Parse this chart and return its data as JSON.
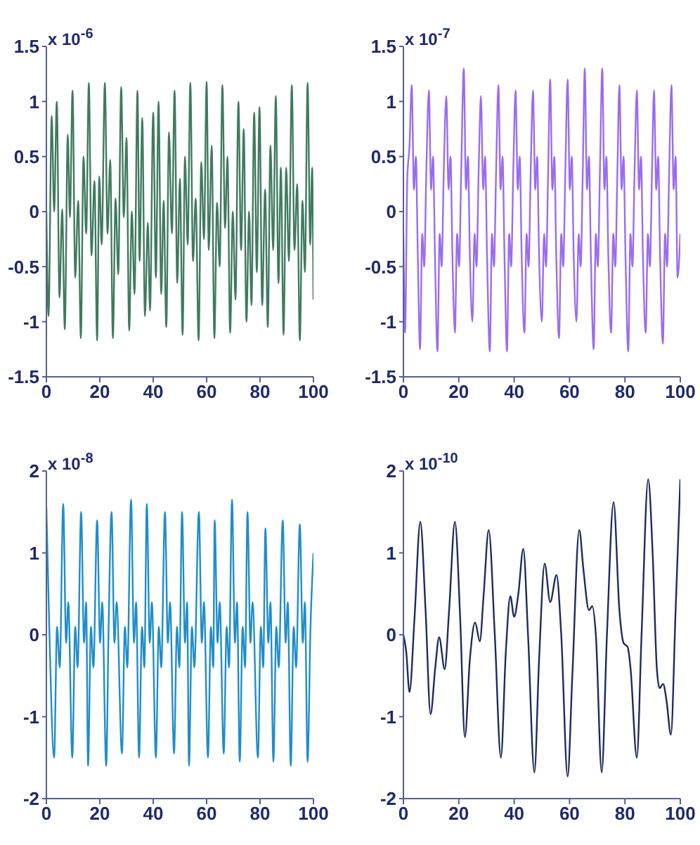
{
  "chart_data": [
    {
      "type": "line",
      "xlim": [
        0,
        100
      ],
      "xticks": [
        0,
        20,
        40,
        60,
        80,
        100
      ],
      "ylim": [
        -1.5,
        1.5
      ],
      "yticks": [
        -1.5,
        -1,
        -0.5,
        0,
        0.5,
        1,
        1.5
      ],
      "annotations": [
        "x 10$^{-6}$"
      ],
      "x": [
        0,
        0.8,
        2,
        2.9,
        3.9,
        4.9,
        5.9,
        6.9,
        8,
        8.8,
        9.8,
        10.8,
        11.9,
        12.9,
        13.9,
        14.9,
        15.9,
        16.9,
        18,
        19,
        19.8,
        20.7,
        21.9,
        22.9,
        23.9,
        24.9,
        25.9,
        26.9,
        28,
        29,
        30,
        31,
        32,
        33,
        34.1,
        34.9,
        35.9,
        36.9,
        38,
        38.8,
        40,
        41,
        42,
        43,
        43.9,
        44.9,
        45.9,
        47,
        48,
        49,
        50,
        51,
        51.9,
        52.9,
        53.9,
        54.9,
        55.9,
        57,
        58,
        59,
        60,
        60.8,
        61.9,
        62.9,
        63.9,
        64.9,
        65.9,
        66.9,
        67.8,
        68.8,
        69.8,
        70.8,
        71.9,
        72.9,
        73.9,
        74.9,
        75.9,
        76.8,
        77.8,
        78.8,
        79.8,
        80.8,
        81.9,
        82.9,
        83.9,
        84.9,
        85.9,
        86.9,
        87.8,
        88.8,
        89.8,
        90.8,
        91.9,
        92.9,
        93.9,
        94.9,
        95.9,
        96.8,
        97.8,
        98.8,
        99.5,
        100
      ],
      "series": [
        {
          "color": "#3f7a5f",
          "values": [
            0,
            -0.95,
            0.87,
            0,
            1.0,
            -0.78,
            0.02,
            -1.07,
            0.7,
            -0.05,
            1.1,
            -0.6,
            0.1,
            -1.15,
            0.5,
            -0.2,
            1.17,
            -0.4,
            0.28,
            -1.17,
            0.32,
            -0.3,
            1.17,
            -0.2,
            0.47,
            -1.15,
            0.12,
            -0.57,
            1.13,
            -0.05,
            0.67,
            -1.08,
            0,
            -0.75,
            1.1,
            -0.45,
            0.85,
            -0.95,
            -0.1,
            -0.9,
            0.9,
            -0.6,
            1.0,
            -0.75,
            0.1,
            -1.05,
            0.72,
            -0.2,
            1.1,
            -0.65,
            0.3,
            -1.12,
            0.5,
            -0.3,
            1.17,
            -0.45,
            0.12,
            -1.17,
            0.45,
            -0.25,
            1.18,
            -0.35,
            0.6,
            -1.15,
            0.08,
            -0.5,
            1.15,
            -0.15,
            0.5,
            -1.1,
            0,
            -0.8,
            1.0,
            -0.35,
            0.75,
            -1.0,
            0,
            -0.85,
            0.9,
            -0.55,
            0.95,
            -0.85,
            0.2,
            -1.05,
            0.6,
            -0.35,
            1.05,
            -0.65,
            0.4,
            -1.12,
            0.4,
            -0.45,
            1.15,
            -0.35,
            0.25,
            -1.17,
            0.1,
            -0.55,
            1.17,
            -0.3,
            0.4,
            -0.8
          ]
        }
      ]
    },
    {
      "type": "line",
      "xlim": [
        0,
        100
      ],
      "xticks": [
        0,
        20,
        40,
        60,
        80,
        100
      ],
      "ylim": [
        -1.5,
        1.5
      ],
      "yticks": [
        -1.5,
        -1,
        -0.5,
        0,
        0.5,
        1,
        1.5
      ],
      "annotations": [
        "x 10$^{-7}$"
      ],
      "x": [
        0,
        0.6,
        1.4,
        2.2,
        3,
        3.8,
        4.5,
        5.2,
        6,
        6.8,
        7.5,
        8.3,
        9.2,
        10,
        10.7,
        11.4,
        12.3,
        13.1,
        13.8,
        14.6,
        15.5,
        16.3,
        17,
        17.7,
        18.6,
        19.4,
        20.1,
        20.9,
        21.8,
        22.6,
        23.3,
        24,
        24.9,
        25.7,
        26.4,
        27.2,
        28,
        28.8,
        29.5,
        30.2,
        31.2,
        32,
        32.7,
        33.5,
        34.3,
        35.1,
        35.8,
        36.5,
        37.4,
        38.2,
        38.9,
        39.7,
        40.5,
        41.3,
        42,
        42.7,
        43.7,
        44.5,
        45.2,
        46,
        46.8,
        47.6,
        48.3,
        49,
        50,
        50.8,
        51.5,
        52.3,
        53,
        53.8,
        54.5,
        55.2,
        56.2,
        57,
        57.7,
        58.5,
        59.3,
        60.1,
        60.8,
        61.5,
        62.5,
        63.3,
        64,
        64.8,
        65.5,
        66.3,
        67,
        67.7,
        68.7,
        69.5,
        70.2,
        71,
        71.8,
        72.6,
        73.3,
        74,
        75,
        75.8,
        76.5,
        77.3,
        78,
        78.8,
        79.5,
        80.2,
        81.2,
        82,
        82.7,
        83.5,
        84.3,
        85.1,
        85.8,
        86.5,
        87.5,
        88.3,
        89,
        89.8,
        90.5,
        91.3,
        92,
        92.7,
        93.7,
        94.5,
        95.2,
        96,
        96.8,
        97.6,
        98.3,
        99,
        100
      ],
      "series": [
        {
          "color": "#9a6cf0",
          "values": [
            -0.2,
            -1.1,
            0.3,
            0.6,
            1.15,
            0.2,
            0.5,
            -0.4,
            -1.25,
            -0.2,
            -0.5,
            0.4,
            1.1,
            0.2,
            0.5,
            -0.4,
            -1.27,
            -0.2,
            -0.5,
            0.4,
            1.05,
            0.2,
            0.5,
            -0.4,
            -1.1,
            -0.2,
            -0.5,
            0.4,
            1.3,
            0.2,
            0.5,
            -0.4,
            -1.0,
            -0.2,
            -0.5,
            0.4,
            1.05,
            0.2,
            0.5,
            -0.4,
            -1.27,
            -0.2,
            -0.5,
            0.4,
            1.15,
            0.2,
            0.5,
            -0.4,
            -1.27,
            -0.2,
            -0.5,
            0.4,
            1.1,
            0.2,
            0.5,
            -0.4,
            -1.1,
            -0.2,
            -0.5,
            0.4,
            1.1,
            0.2,
            0.5,
            -0.4,
            -1.0,
            -0.2,
            -0.5,
            0.4,
            1.2,
            0.2,
            0.5,
            -0.4,
            -1.15,
            -0.2,
            -0.5,
            0.4,
            1.2,
            0.2,
            0.5,
            -0.4,
            -1.0,
            -0.2,
            -0.5,
            0.4,
            1.3,
            0.2,
            0.5,
            -0.4,
            -1.25,
            -0.2,
            -0.5,
            0.4,
            1.3,
            0.2,
            0.5,
            -0.4,
            -1.1,
            -0.2,
            -0.5,
            0.4,
            1.15,
            0.2,
            0.5,
            -0.4,
            -1.27,
            -0.2,
            -0.5,
            0.4,
            1.1,
            0.2,
            0.5,
            -0.4,
            -1.1,
            -0.2,
            -0.5,
            0.4,
            1.1,
            0.2,
            0.5,
            -0.4,
            -1.2,
            -0.2,
            -0.5,
            0.4,
            1.15,
            0.2,
            0.5,
            -0.6,
            -0.2
          ]
        }
      ]
    },
    {
      "type": "line",
      "xlim": [
        0,
        100
      ],
      "xticks": [
        0,
        20,
        40,
        60,
        80,
        100
      ],
      "ylim": [
        -2,
        2
      ],
      "yticks": [
        -2,
        -1,
        0,
        1,
        2
      ],
      "annotations": [
        "x 10$^{-8}$"
      ],
      "x": [
        0,
        1,
        2.9,
        4,
        5,
        6.3,
        7.4,
        8.2,
        9.7,
        10.8,
        11.7,
        13,
        14.1,
        14.9,
        15.6,
        16.7,
        17.6,
        19,
        20.1,
        20.9,
        22.4,
        23.3,
        24.4,
        25.5,
        26.3,
        28.3,
        29.4,
        30.3,
        31.7,
        32.8,
        33.6,
        34.7,
        35.8,
        36.7,
        37.6,
        38.7,
        39.5,
        41,
        42.1,
        43,
        44.4,
        45.5,
        46.3,
        47.8,
        48.9,
        49.8,
        50.8,
        51.9,
        52.7,
        53.4,
        54.5,
        55.4,
        57.1,
        58.2,
        59,
        60.5,
        61.6,
        62.5,
        63,
        64.1,
        64.9,
        66.4,
        67.5,
        68.4,
        69.5,
        70.6,
        71.4,
        72.4,
        73.5,
        74.4,
        75.3,
        76.4,
        77.2,
        79.2,
        80.3,
        81.2,
        82,
        83.1,
        83.9,
        85,
        86.1,
        87,
        88.5,
        89.6,
        90.4,
        91.5,
        92.6,
        93.5,
        94.9,
        96,
        96.8,
        97.8,
        98.9,
        100
      ],
      "series": [
        {
          "color": "#1f8dcb",
          "values": [
            1.55,
            0.2,
            -1.5,
            0.1,
            -0.4,
            1.6,
            -0.1,
            0.4,
            -1.5,
            0.1,
            -0.4,
            1.5,
            -0.1,
            0.4,
            -1.6,
            0.1,
            -0.4,
            1.4,
            -0.1,
            0.4,
            -1.6,
            0.1,
            1.5,
            -0.1,
            0.4,
            -1.45,
            0.1,
            -0.4,
            1.65,
            -0.1,
            0.4,
            -1.5,
            0.1,
            -0.4,
            1.6,
            -0.1,
            0.4,
            -1.5,
            0.1,
            -0.4,
            1.5,
            -0.1,
            0.4,
            -1.45,
            0.1,
            -0.4,
            1.5,
            -0.1,
            0.4,
            -1.6,
            0.1,
            -0.4,
            1.5,
            -0.1,
            0.4,
            -1.5,
            0.1,
            -0.4,
            1.4,
            -0.1,
            0.4,
            -1.45,
            0.1,
            -0.4,
            1.65,
            -0.1,
            0.4,
            -1.55,
            0.1,
            -0.4,
            1.5,
            -0.1,
            0.4,
            -1.5,
            0.1,
            -0.4,
            1.3,
            -0.1,
            0.4,
            -1.55,
            0.1,
            -0.4,
            1.4,
            -0.1,
            0.4,
            -1.6,
            0.1,
            -0.4,
            1.35,
            -0.1,
            0.4,
            -1.55,
            0.1,
            1.0
          ]
        }
      ]
    },
    {
      "type": "line",
      "xlim": [
        0,
        100
      ],
      "xticks": [
        0,
        20,
        40,
        60,
        80,
        100
      ],
      "ylim": [
        -2,
        2
      ],
      "yticks": [
        -2,
        -1,
        0,
        1,
        2
      ],
      "annotations": [
        "x 10$^{-10}$"
      ],
      "x": [
        0,
        1,
        2.2,
        4,
        6.1,
        8,
        9.8,
        11.5,
        12.9,
        14.9,
        16.5,
        18.6,
        20.5,
        22.2,
        24,
        25.9,
        27.6,
        29,
        30.8,
        33,
        35.2,
        37,
        38.6,
        40,
        41.5,
        43.3,
        45,
        47.3,
        49,
        51,
        53,
        55.3,
        57,
        59.3,
        61,
        63.5,
        65,
        67,
        68.2,
        69.5,
        71.6,
        73.5,
        75.9,
        78,
        79.5,
        81,
        82,
        84.3,
        86,
        88.4,
        90,
        91.5,
        92.5,
        93.8,
        95,
        96.6,
        98.3,
        100
      ],
      "series": [
        {
          "color": "#1c2b5e",
          "values": [
            0,
            -0.2,
            -0.7,
            0.2,
            1.38,
            0.3,
            -0.97,
            -0.4,
            -0.03,
            -0.42,
            0.3,
            1.38,
            0.2,
            -1.25,
            -0.3,
            0.15,
            -0.08,
            0.5,
            1.28,
            0,
            -1.5,
            -0.2,
            0.47,
            0.22,
            0.5,
            1.05,
            0,
            -1.68,
            -0.3,
            0.87,
            0.4,
            0.73,
            0,
            -1.73,
            -0.5,
            1.28,
            0.8,
            0.3,
            0.35,
            0,
            -1.68,
            0,
            1.62,
            0.3,
            -0.1,
            -0.15,
            -0.4,
            -1.5,
            0,
            1.9,
            1.0,
            -0.4,
            -0.65,
            -0.6,
            -0.8,
            -1.22,
            0.3,
            1.9
          ]
        }
      ]
    }
  ]
}
